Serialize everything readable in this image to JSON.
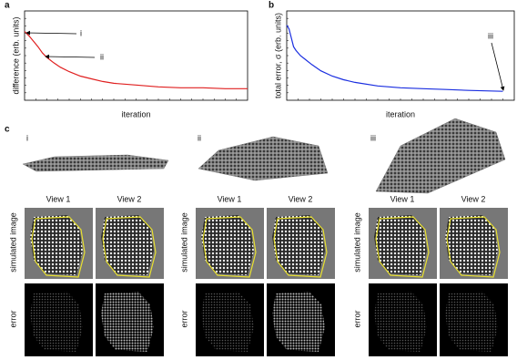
{
  "chart_data": [
    {
      "type": "line",
      "panel_label": "a",
      "ylabel": "difference (erb. units)",
      "xlabel": "iteration",
      "xlim": [
        0,
        100
      ],
      "ylim": [
        0,
        1
      ],
      "x": [
        0,
        2,
        4,
        6,
        8,
        10,
        13,
        16,
        20,
        25,
        30,
        35,
        40,
        50,
        60,
        70,
        80,
        90,
        100
      ],
      "series": [
        {
          "color": "#e02020",
          "values": [
            0.77,
            0.72,
            0.66,
            0.6,
            0.53,
            0.48,
            0.42,
            0.37,
            0.32,
            0.27,
            0.24,
            0.21,
            0.19,
            0.17,
            0.15,
            0.14,
            0.14,
            0.13,
            0.13
          ]
        }
      ],
      "annotations": [
        "i",
        "ii"
      ]
    },
    {
      "type": "line",
      "panel_label": "b",
      "ylabel": "total error, σ (erb. units)",
      "xlabel": "iteration",
      "xlim": [
        0,
        100
      ],
      "ylim": [
        0,
        1
      ],
      "x": [
        0,
        1,
        2,
        3,
        4,
        6,
        8,
        11,
        15,
        20,
        25,
        30,
        40,
        50,
        60,
        70,
        80,
        95
      ],
      "series": [
        {
          "color": "#1a2ee0",
          "values": [
            0.84,
            0.8,
            0.7,
            0.6,
            0.56,
            0.5,
            0.46,
            0.4,
            0.33,
            0.27,
            0.23,
            0.2,
            0.16,
            0.14,
            0.13,
            0.12,
            0.11,
            0.1
          ]
        }
      ],
      "annotations": [
        "iii"
      ]
    }
  ],
  "panel_c": {
    "panel_label": "c",
    "columns": [
      "i",
      "ii",
      "iii"
    ],
    "view_labels": [
      "View 1",
      "View 2"
    ],
    "row_labels": [
      "simulated image",
      "error"
    ]
  }
}
